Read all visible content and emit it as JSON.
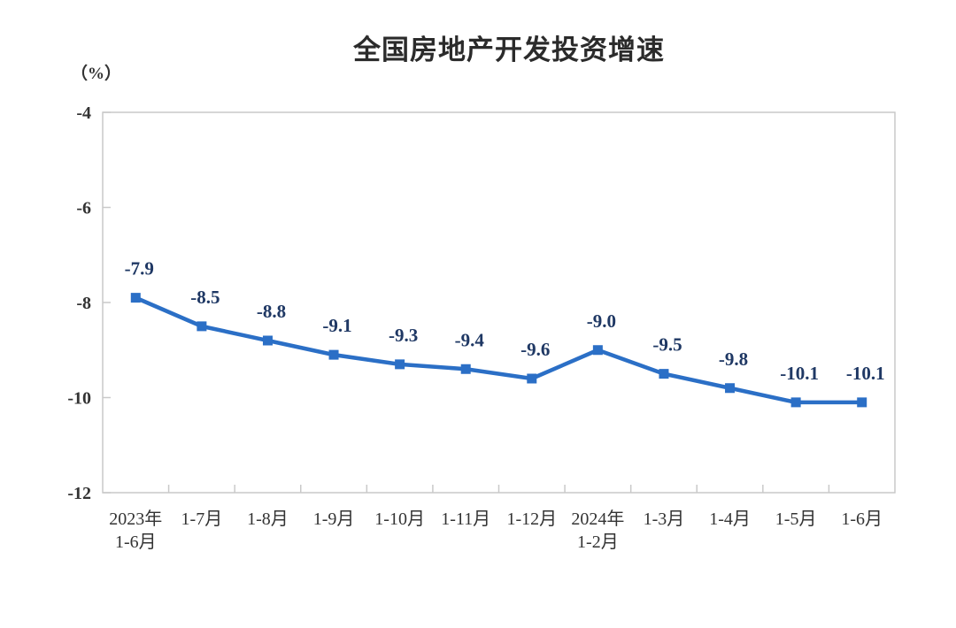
{
  "chart_data": {
    "type": "line",
    "title": "全国房地产开发投资增速",
    "unit_label": "（%）",
    "categories": [
      "2023年\n1-6月",
      "1-7月",
      "1-8月",
      "1-9月",
      "1-10月",
      "1-11月",
      "1-12月",
      "2024年\n1-2月",
      "1-3月",
      "1-4月",
      "1-5月",
      "1-6月"
    ],
    "values": [
      -7.9,
      -8.5,
      -8.8,
      -9.1,
      -9.3,
      -9.4,
      -9.6,
      -9.0,
      -9.5,
      -9.8,
      -10.1,
      -10.1
    ],
    "data_labels": [
      "-7.9",
      "-8.5",
      "-8.8",
      "-9.1",
      "-9.3",
      "-9.4",
      "-9.6",
      "-9.0",
      "-9.5",
      "-9.8",
      "-10.1",
      "-10.1"
    ],
    "y_ticks": [
      "-4",
      "-6",
      "-8",
      "-10",
      "-12"
    ],
    "y_tick_values": [
      -4,
      -6,
      -8,
      -10,
      -12
    ],
    "ylim": [
      -12,
      -4
    ],
    "grid": false,
    "legend": "none",
    "colors": {
      "line": "#2B6FC6",
      "marker": "#2B6FC6",
      "data_label": "#1F3864",
      "axis_text": "#333333",
      "title": "#2b2b2b",
      "plot_border": "#C9C9C9",
      "background": "#FFFFFF"
    }
  }
}
